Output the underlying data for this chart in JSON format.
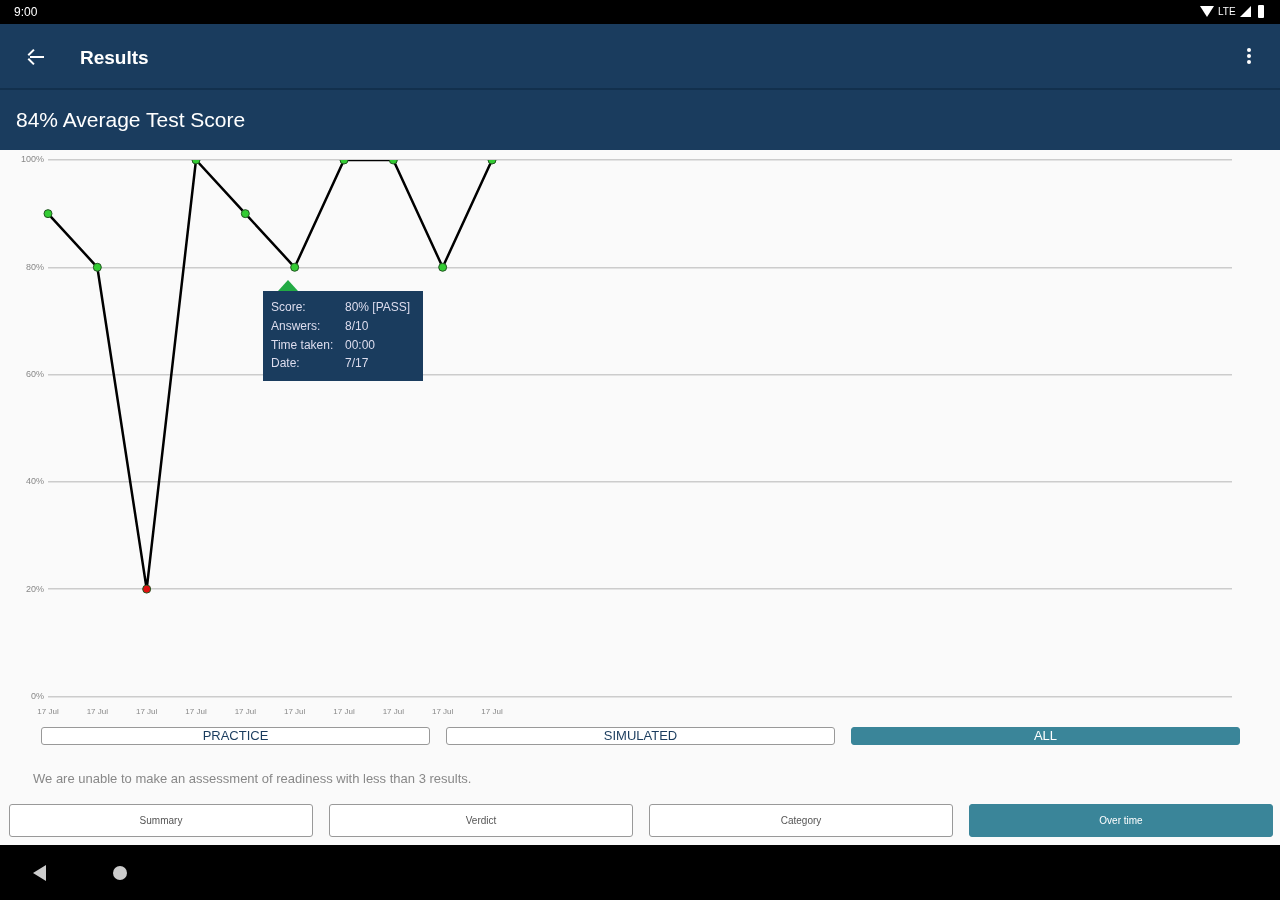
{
  "chart_data": {
    "type": "line",
    "title": "84% Average Test Score",
    "categories": [
      "17 Jul",
      "17 Jul",
      "17 Jul",
      "17 Jul",
      "17 Jul",
      "17 Jul",
      "17 Jul",
      "17 Jul",
      "17 Jul",
      "17 Jul",
      null,
      null,
      null,
      null,
      null,
      null,
      null,
      null,
      null,
      null,
      null,
      null,
      null,
      null,
      null
    ],
    "series": [
      {
        "color": "#000000",
        "values": [
          90,
          80,
          20,
          100,
          90,
          80,
          100,
          100,
          80,
          100,
          null,
          null,
          null,
          null,
          null,
          null,
          null,
          null,
          null,
          null,
          null,
          null,
          null,
          null,
          null
        ],
        "colors": [
          "#33cc33",
          "#33cc33",
          "#e01010",
          "#33cc33",
          "#33cc33",
          "#33cc33",
          "#33cc33",
          "#33cc33",
          "#33cc33",
          "#33cc33",
          null,
          null,
          null,
          null,
          null,
          null,
          null,
          null,
          null,
          null,
          null,
          null,
          null,
          null,
          null
        ]
      }
    ],
    "ylim": [
      0,
      100
    ],
    "yticks": [
      {
        "value": 0,
        "label": "0%"
      },
      {
        "value": 20,
        "label": "20%"
      },
      {
        "value": 40,
        "label": "40%"
      },
      {
        "value": 60,
        "label": "60%"
      },
      {
        "value": 80,
        "label": "80%"
      },
      {
        "value": 100,
        "label": "100%"
      }
    ],
    "grid": "y",
    "legend": false,
    "marker": "circle",
    "line_style": "solid",
    "annotations": [
      "9:00",
      "LTE",
      "Results",
      "PRACTICE",
      "SIMULATED",
      "ALL",
      "We are unable to make an assessment of readiness with less than 3 results.",
      "Summary",
      "Verdict",
      "Category",
      "Over time",
      "Score:",
      "80% [PASS]",
      "Answers:",
      "8/10",
      "Time taken:",
      "00:00",
      "Date:",
      "7/17"
    ]
  }
}
